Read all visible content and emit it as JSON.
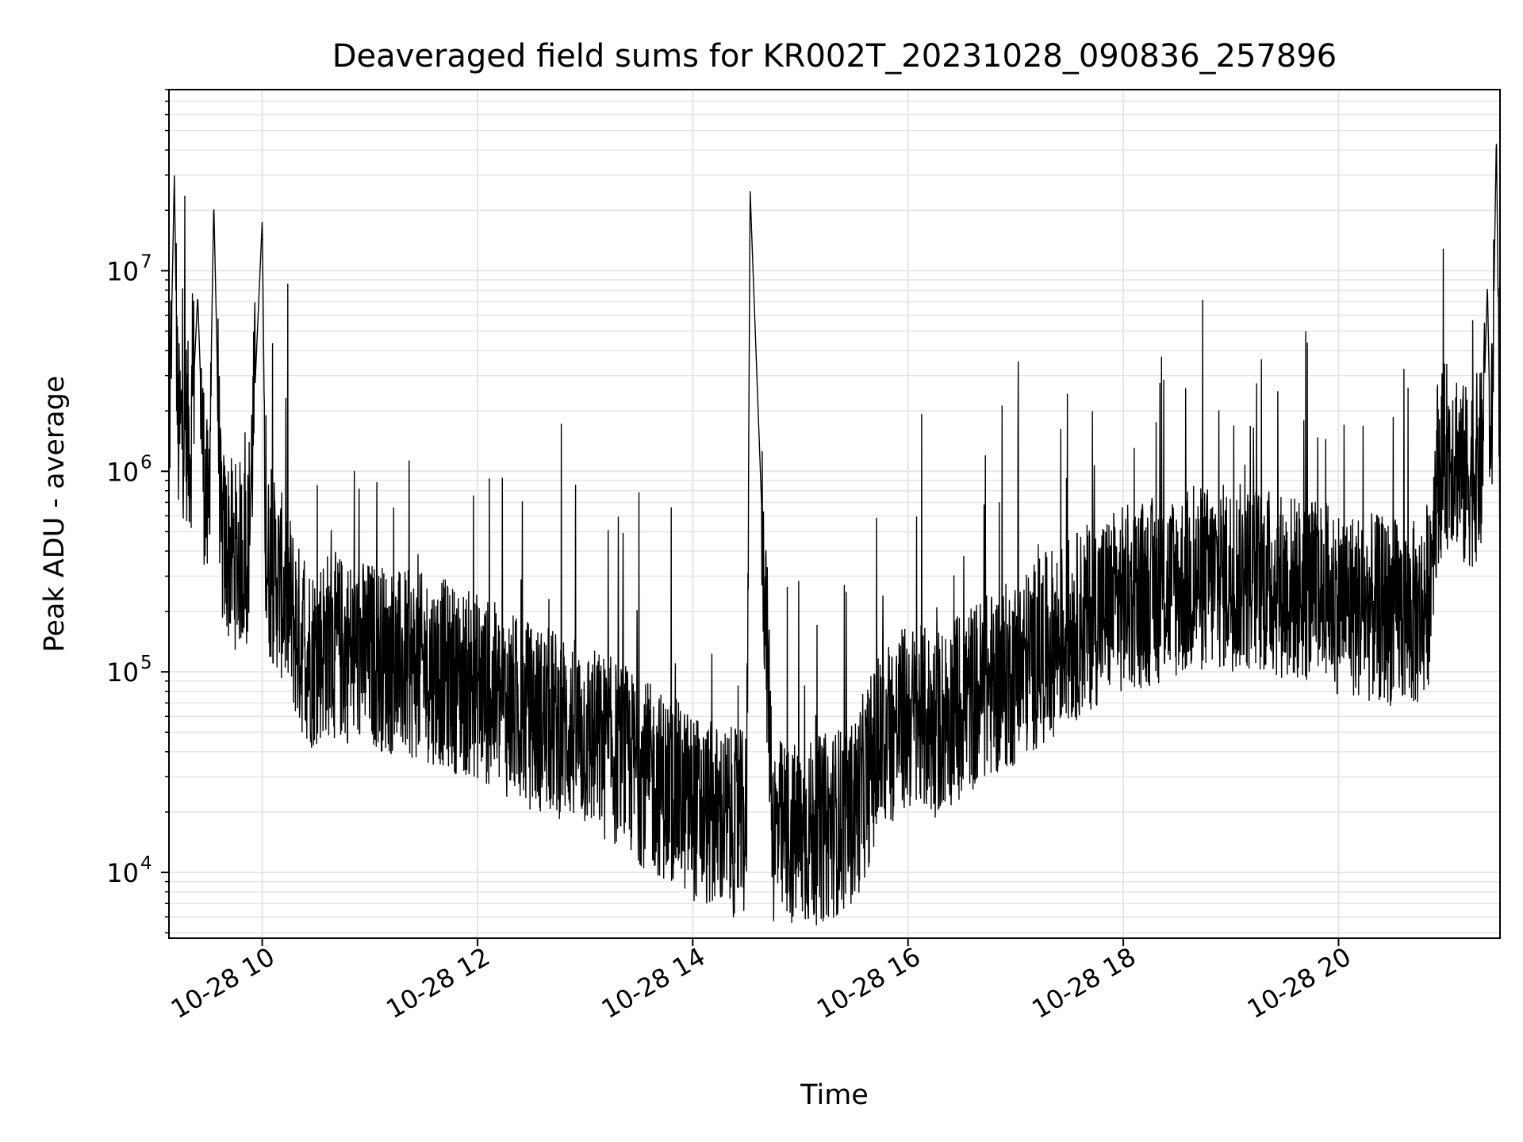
{
  "chart_data": {
    "type": "line",
    "title": "Deaveraged field sums for KR002T_20231028_090836_257896",
    "xlabel": "Time",
    "ylabel": "Peak ADU - average",
    "xlim": [
      "2023-10-28T09:08",
      "2023-10-28T21:30"
    ],
    "ylim": [
      4700,
      80000000
    ],
    "yscale": "log",
    "grid": true,
    "x_ticks": [
      {
        "value": "2023-10-28T10:00",
        "label": "10-28 10"
      },
      {
        "value": "2023-10-28T12:00",
        "label": "10-28 12"
      },
      {
        "value": "2023-10-28T14:00",
        "label": "10-28 14"
      },
      {
        "value": "2023-10-28T16:00",
        "label": "10-28 16"
      },
      {
        "value": "2023-10-28T18:00",
        "label": "10-28 18"
      },
      {
        "value": "2023-10-28T20:00",
        "label": "10-28 20"
      }
    ],
    "y_ticks": [
      {
        "value": 10000,
        "base": "10",
        "exp": "4"
      },
      {
        "value": 100000,
        "base": "10",
        "exp": "5"
      },
      {
        "value": 1000000,
        "base": "10",
        "exp": "6"
      },
      {
        "value": 10000000,
        "base": "10",
        "exp": "7"
      }
    ],
    "line_color": "#000000",
    "series": [
      {
        "x": [
          "2023-10-28T09:08",
          "2023-10-28T09:11",
          "2023-10-28T09:13",
          "2023-10-28T09:17",
          "2023-10-28T09:20",
          "2023-10-28T09:24",
          "2023-10-28T09:27",
          "2023-10-28T09:30",
          "2023-10-28T09:33",
          "2023-10-28T09:37",
          "2023-10-28T09:40",
          "2023-10-28T09:45",
          "2023-10-28T09:52",
          "2023-10-28T10:00",
          "2023-10-28T10:02",
          "2023-10-28T10:08",
          "2023-10-28T10:15",
          "2023-10-28T10:20",
          "2023-10-28T10:28",
          "2023-10-28T10:35",
          "2023-10-28T10:45",
          "2023-10-28T10:55",
          "2023-10-28T11:05",
          "2023-10-28T11:15",
          "2023-10-28T11:30",
          "2023-10-28T11:40",
          "2023-10-28T11:50",
          "2023-10-28T12:00",
          "2023-10-28T12:15",
          "2023-10-28T12:30",
          "2023-10-28T12:45",
          "2023-10-28T12:55",
          "2023-10-28T13:05",
          "2023-10-28T13:20",
          "2023-10-28T13:35",
          "2023-10-28T13:50",
          "2023-10-28T14:05",
          "2023-10-28T14:20",
          "2023-10-28T14:30",
          "2023-10-28T14:32",
          "2023-10-28T14:45",
          "2023-10-28T15:00",
          "2023-10-28T15:15",
          "2023-10-28T15:30",
          "2023-10-28T15:40",
          "2023-10-28T15:50",
          "2023-10-28T16:00",
          "2023-10-28T16:15",
          "2023-10-28T16:30",
          "2023-10-28T16:45",
          "2023-10-28T17:00",
          "2023-10-28T17:15",
          "2023-10-28T17:30",
          "2023-10-28T17:45",
          "2023-10-28T18:00",
          "2023-10-28T18:15",
          "2023-10-28T18:30",
          "2023-10-28T18:45",
          "2023-10-28T19:00",
          "2023-10-28T19:15",
          "2023-10-28T19:30",
          "2023-10-28T19:45",
          "2023-10-28T20:00",
          "2023-10-28T20:15",
          "2023-10-28T20:30",
          "2023-10-28T20:45",
          "2023-10-28T20:50",
          "2023-10-28T20:55",
          "2023-10-28T21:00",
          "2023-10-28T21:05",
          "2023-10-28T21:10",
          "2023-10-28T21:15",
          "2023-10-28T21:20",
          "2023-10-28T21:23",
          "2023-10-28T21:25",
          "2023-10-28T21:28",
          "2023-10-28T21:30"
        ],
        "values": [
          1200000,
          30000000,
          1500000,
          1800000,
          1300000,
          7500000,
          1200000,
          500000,
          22000000,
          480000,
          420000,
          380000,
          400000,
          18000000,
          350000,
          300000,
          220000,
          150000,
          120000,
          140000,
          130000,
          125000,
          120000,
          110000,
          105000,
          100000,
          90000,
          85000,
          70000,
          60000,
          55000,
          50000,
          45000,
          38000,
          30000,
          25000,
          20000,
          18000,
          17000,
          25000000,
          16000,
          15000,
          17000,
          20000,
          35000,
          50000,
          60000,
          55000,
          70000,
          85000,
          100000,
          130000,
          160000,
          200000,
          230000,
          250000,
          270000,
          290000,
          300000,
          290000,
          270000,
          250000,
          230000,
          210000,
          200000,
          190000,
          250000,
          1000000,
          1200000,
          1300000,
          900000,
          1000000,
          1100000,
          8500000,
          900000,
          48000000,
          900000
        ]
      }
    ]
  }
}
